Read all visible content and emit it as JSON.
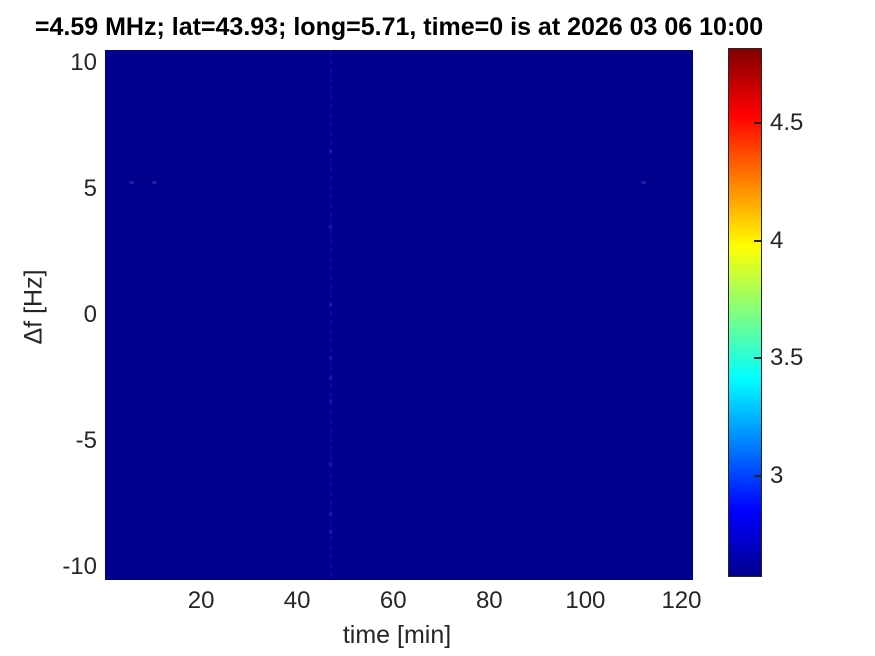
{
  "chart_data": {
    "type": "heatmap",
    "title": "=4.59 MHz;  lat=43.93; long=5.71, time=0 is at 2026 03 06 10:00",
    "xlabel": "time [min]",
    "ylabel": "Δf [Hz]",
    "xlim": [
      0,
      122.4
    ],
    "ylim": [
      -10.5,
      10.5
    ],
    "x_ticks": [
      20,
      40,
      60,
      80,
      100,
      120
    ],
    "y_ticks": [
      10,
      5,
      0,
      -5,
      -10
    ],
    "grid": false,
    "background_value_color": "#00008F",
    "colorbar": {
      "position": "right",
      "ticks": [
        4.5,
        4,
        3.5,
        3
      ],
      "range": [
        2.57,
        4.82
      ],
      "colormap": "jet",
      "stops": [
        "#00008F",
        "#0000FF",
        "#00FFFF",
        "#FFFF00",
        "#FF0000",
        "#800000"
      ],
      "stop_positions": [
        0,
        12.5,
        37.5,
        62.5,
        87.5,
        100
      ]
    },
    "features": {
      "event_line": {
        "time_min": 47,
        "color": "#1A1AC2",
        "style": "faint-dashed",
        "bright_points_df": [
          6.5,
          3.5,
          0.4,
          -1.7,
          -2.5,
          -3.4,
          -5.9,
          -7.9,
          -8.6
        ]
      },
      "specks": [
        {
          "t": 5.6,
          "df": 5.25
        },
        {
          "t": 10.4,
          "df": 5.25
        },
        {
          "t": 112.0,
          "df": 5.25
        }
      ],
      "speck_color": "#3535B8"
    }
  }
}
